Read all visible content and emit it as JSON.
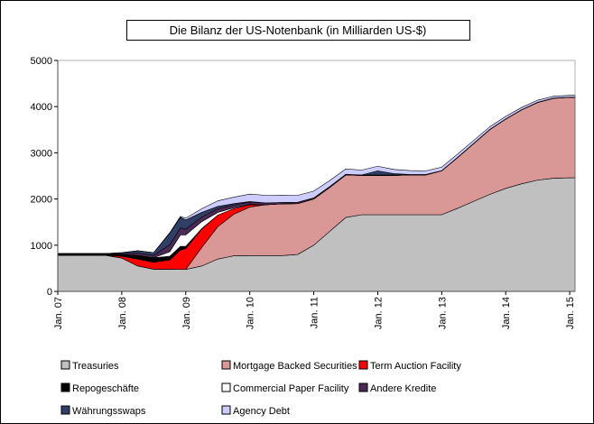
{
  "chart_data": {
    "type": "stacked-area",
    "title": "Die Bilanz der US-Notenbank (in Milliarden US-$)",
    "x": [
      "2007-01",
      "2007-04",
      "2007-07",
      "2007-10",
      "2008-01",
      "2008-04",
      "2008-07",
      "2008-10",
      "2008-12",
      "2009-01",
      "2009-04",
      "2009-07",
      "2009-10",
      "2010-01",
      "2010-04",
      "2010-07",
      "2010-10",
      "2011-01",
      "2011-04",
      "2011-07",
      "2011-10",
      "2012-01",
      "2012-04",
      "2012-07",
      "2012-10",
      "2013-01",
      "2013-04",
      "2013-07",
      "2013-10",
      "2014-01",
      "2014-04",
      "2014-07",
      "2014-10",
      "2015-01",
      "2015-02"
    ],
    "xlim": [
      "2007-01",
      "2015-02"
    ],
    "xticks": [
      {
        "value": "2007-01",
        "label": "Jan. 07"
      },
      {
        "value": "2008-01",
        "label": "Jan. 08"
      },
      {
        "value": "2009-01",
        "label": "Jan. 09"
      },
      {
        "value": "2010-01",
        "label": "Jan. 10"
      },
      {
        "value": "2011-01",
        "label": "Jan. 11"
      },
      {
        "value": "2012-01",
        "label": "Jan. 12"
      },
      {
        "value": "2013-01",
        "label": "Jan. 13"
      },
      {
        "value": "2014-01",
        "label": "Jan. 14"
      },
      {
        "value": "2015-01",
        "label": "Jan. 15"
      }
    ],
    "ylim": [
      0,
      5000
    ],
    "yticks": [
      0,
      1000,
      2000,
      3000,
      4000,
      5000
    ],
    "series": [
      {
        "name": "Treasuries",
        "color": "#c0c0c0",
        "values": [
          780,
          780,
          780,
          780,
          720,
          550,
          480,
          480,
          475,
          475,
          550,
          700,
          770,
          775,
          775,
          775,
          800,
          1000,
          1300,
          1600,
          1660,
          1660,
          1660,
          1660,
          1660,
          1660,
          1800,
          1950,
          2100,
          2230,
          2330,
          2410,
          2450,
          2460,
          2460
        ]
      },
      {
        "name": "Mortgage Backed Securities",
        "color": "#d99795",
        "values": [
          0,
          0,
          0,
          0,
          0,
          0,
          0,
          0,
          0,
          0,
          400,
          700,
          900,
          1050,
          1100,
          1120,
          1100,
          1000,
          950,
          920,
          850,
          850,
          850,
          860,
          860,
          950,
          1100,
          1250,
          1400,
          1500,
          1600,
          1680,
          1730,
          1740,
          1740
        ]
      },
      {
        "name": "Term Auction Facility",
        "color": "#ff0000",
        "values": [
          0,
          0,
          0,
          0,
          40,
          150,
          150,
          200,
          420,
          450,
          400,
          250,
          120,
          50,
          0,
          0,
          0,
          0,
          0,
          0,
          0,
          0,
          0,
          0,
          0,
          0,
          0,
          0,
          0,
          0,
          0,
          0,
          0,
          0,
          0
        ]
      },
      {
        "name": "Repogeschäfte",
        "color": "#000000",
        "values": [
          30,
          30,
          30,
          30,
          40,
          80,
          100,
          80,
          80,
          50,
          10,
          0,
          0,
          0,
          0,
          0,
          0,
          0,
          0,
          0,
          0,
          0,
          0,
          0,
          0,
          0,
          0,
          0,
          0,
          0,
          0,
          0,
          0,
          0,
          0
        ]
      },
      {
        "name": "Commercial Paper Facility",
        "color": "#ffffff",
        "values": [
          0,
          0,
          0,
          0,
          0,
          0,
          0,
          100,
          250,
          250,
          150,
          60,
          20,
          10,
          0,
          0,
          0,
          0,
          0,
          0,
          0,
          0,
          0,
          0,
          0,
          0,
          0,
          0,
          0,
          0,
          0,
          0,
          0,
          0,
          0
        ]
      },
      {
        "name": "Andere Kredite",
        "color": "#4b2a55",
        "values": [
          10,
          10,
          10,
          10,
          20,
          50,
          50,
          150,
          150,
          120,
          100,
          80,
          60,
          50,
          40,
          30,
          30,
          25,
          20,
          15,
          12,
          10,
          10,
          10,
          10,
          5,
          5,
          5,
          5,
          5,
          5,
          5,
          5,
          5,
          5
        ]
      },
      {
        "name": "Währungsswaps",
        "color": "#2f3f66",
        "values": [
          0,
          0,
          0,
          0,
          20,
          50,
          60,
          250,
          230,
          200,
          100,
          50,
          30,
          10,
          0,
          0,
          0,
          0,
          0,
          0,
          0,
          90,
          30,
          0,
          0,
          0,
          0,
          0,
          0,
          0,
          0,
          0,
          0,
          0,
          0
        ]
      },
      {
        "name": "Agency Debt",
        "color": "#ccccff",
        "values": [
          0,
          0,
          0,
          0,
          0,
          0,
          0,
          10,
          20,
          40,
          80,
          120,
          140,
          160,
          165,
          160,
          150,
          145,
          130,
          115,
          105,
          100,
          90,
          85,
          80,
          75,
          70,
          65,
          58,
          55,
          48,
          45,
          40,
          39,
          39
        ]
      }
    ]
  }
}
